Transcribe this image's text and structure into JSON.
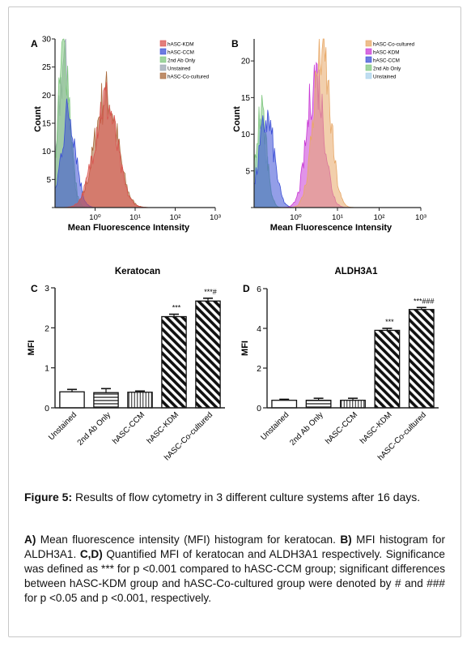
{
  "figure": {
    "caption_label": "Figure 5:",
    "caption_title": "Results of flow cytometry in 3 different culture systems after 16 days.",
    "caption_body": [
      {
        "t": "A)",
        "b": true
      },
      {
        "t": " Mean fluorescence intensity (MFI) histogram for keratocan. ",
        "b": false
      },
      {
        "t": "B)",
        "b": true
      },
      {
        "t": " MFI histogram for ALDH3A1. ",
        "b": false
      },
      {
        "t": "C,D)",
        "b": true
      },
      {
        "t": " Quantified MFI of keratocan and ALDH3A1 respectively.  Significance was defined as *** for p <0.001 compared to hASC-CCM group; significant differences between hASC-KDM group and hASC-Co-cultured group were denoted by # and ### for p <0.05 and p <0.001, respectively.",
        "b": false
      }
    ]
  },
  "colors": {
    "kdm": "#d9534f",
    "ccm": "#3b4fd6",
    "ab2": "#7fc77f",
    "unst": "#9aa6b2",
    "co": "#a8683a",
    "co_fill": "#e8a867",
    "magenta": "#c93ad6",
    "lightblue": "#a9d2ec"
  },
  "chart_data": [
    {
      "panel": "A",
      "type": "area",
      "xlabel": "Mean Fluorescence Intensity",
      "ylabel": "Count",
      "log_x": true,
      "x_tick_labels": [
        "10⁰",
        "10¹",
        "10²",
        "10³"
      ],
      "x_ticks": [
        1,
        10,
        100,
        1000
      ],
      "xlim": [
        0.1,
        1000
      ],
      "ylim": [
        0,
        30
      ],
      "y_ticks": [
        0,
        5,
        10,
        15,
        20,
        25,
        30
      ],
      "y_tick_labels": [
        "5",
        "10",
        "15",
        "20",
        "25",
        "30"
      ],
      "legend_placement": "top-right",
      "series": [
        {
          "name": "hASC-KDM",
          "color_key": "kdm",
          "peak_x": 1.8,
          "spread": 0.28,
          "peak_y": 19
        },
        {
          "name": "hASC-CCM",
          "color_key": "ccm",
          "peak_x": 0.22,
          "spread": 0.18,
          "peak_y": 17
        },
        {
          "name": "2nd Ab Only",
          "color_key": "ab2",
          "peak_x": 0.17,
          "spread": 0.15,
          "peak_y": 28
        },
        {
          "name": "Unstained",
          "color_key": "unst",
          "peak_x": 0.17,
          "spread": 0.14,
          "peak_y": 26
        },
        {
          "name": "hASC-Co-cultured",
          "color_key": "co",
          "peak_x": 1.9,
          "spread": 0.28,
          "peak_y": 20
        }
      ]
    },
    {
      "panel": "B",
      "type": "area",
      "xlabel": "Mean Fluorescence Intensity",
      "ylabel": "Count",
      "log_x": true,
      "x_tick_labels": [
        "10⁰",
        "10¹",
        "10²",
        "10³"
      ],
      "x_ticks": [
        1,
        10,
        100,
        1000
      ],
      "xlim": [
        0.1,
        1000
      ],
      "ylim": [
        0,
        23
      ],
      "y_ticks": [
        0,
        5,
        10,
        15,
        20
      ],
      "y_tick_labels": [
        "5",
        "10",
        "15",
        "20"
      ],
      "legend_placement": "top-right",
      "series": [
        {
          "name": "hASC-Co-cultured",
          "color_key": "co_fill",
          "peak_x": 4.2,
          "spread": 0.2,
          "peak_y": 21.5
        },
        {
          "name": "hASC-KDM",
          "color_key": "magenta",
          "peak_x": 3.0,
          "spread": 0.2,
          "peak_y": 18
        },
        {
          "name": "hASC-CCM",
          "color_key": "ccm",
          "peak_x": 0.2,
          "spread": 0.18,
          "peak_y": 12
        },
        {
          "name": "2nd Ab Only",
          "color_key": "ab2",
          "peak_x": 0.15,
          "spread": 0.13,
          "peak_y": 13
        },
        {
          "name": "Unstained",
          "color_key": "lightblue",
          "peak_x": 0.15,
          "spread": 0.13,
          "peak_y": 11
        }
      ]
    },
    {
      "panel": "C",
      "type": "bar",
      "title": "Keratocan",
      "ylabel": "MFI",
      "ylim": [
        0,
        3
      ],
      "y_ticks": [
        0,
        1,
        2,
        3
      ],
      "categories": [
        "Unstained",
        "2nd Ab Only",
        "hASC-CCM",
        "hASC-KDM",
        "hASC-Co-cultured"
      ],
      "values": [
        0.4,
        0.38,
        0.39,
        2.28,
        2.67
      ],
      "errors": [
        0.06,
        0.1,
        0.03,
        0.06,
        0.07
      ],
      "patterns": [
        "none",
        "hstripes",
        "vstripes",
        "diag",
        "diag"
      ],
      "annotations": [
        "",
        "",
        "",
        "***",
        "***#"
      ]
    },
    {
      "panel": "D",
      "type": "bar",
      "title": "ALDH3A1",
      "ylabel": "MFI",
      "ylim": [
        0,
        6
      ],
      "y_ticks": [
        0,
        2,
        4,
        6
      ],
      "categories": [
        "Unstained",
        "2nd Ab Only",
        "hASC-CCM",
        "hASC-KDM",
        "hASC-Co-cultured"
      ],
      "values": [
        0.38,
        0.38,
        0.38,
        3.9,
        4.95
      ],
      "errors": [
        0.05,
        0.1,
        0.1,
        0.1,
        0.1
      ],
      "patterns": [
        "none",
        "hstripes",
        "vstripes",
        "diag",
        "diag"
      ],
      "annotations": [
        "",
        "",
        "",
        "***",
        "***###"
      ]
    }
  ]
}
